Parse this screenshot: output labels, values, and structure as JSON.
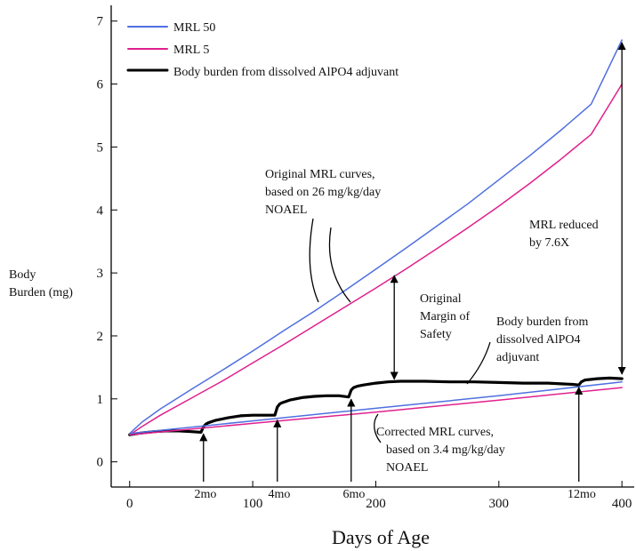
{
  "chart_data": {
    "type": "line",
    "xlabel": "Days of Age",
    "ylabel": [
      "Body",
      "Burden (mg)"
    ],
    "xlim": [
      -15,
      410
    ],
    "ylim": [
      -0.4,
      7.25
    ],
    "x_ticks": [
      0,
      100,
      200,
      300,
      400
    ],
    "y_ticks": [
      0,
      1,
      2,
      3,
      4,
      5,
      6,
      7
    ],
    "grid": false,
    "legend_position": "top-left",
    "series": [
      {
        "name": "MRL 50",
        "color": "#4f6fe0",
        "x": [
          0,
          10,
          25,
          50,
          75,
          100,
          125,
          150,
          175,
          200,
          225,
          250,
          275,
          300,
          325,
          350,
          375,
          400
        ],
        "y": [
          0.45,
          0.63,
          0.84,
          1.15,
          1.45,
          1.76,
          2.08,
          2.39,
          2.72,
          3.06,
          3.4,
          3.75,
          4.1,
          4.48,
          4.86,
          5.26,
          5.68,
          6.7
        ]
      },
      {
        "name": "MRL 5",
        "color": "#e0208e",
        "x": [
          0,
          10,
          25,
          50,
          75,
          100,
          125,
          150,
          175,
          200,
          225,
          250,
          275,
          300,
          325,
          350,
          375,
          400
        ],
        "y": [
          0.43,
          0.56,
          0.74,
          1.01,
          1.28,
          1.57,
          1.86,
          2.16,
          2.46,
          2.76,
          3.07,
          3.39,
          3.72,
          4.06,
          4.42,
          4.8,
          5.2,
          6.0
        ]
      },
      {
        "name": "Body burden from dissolved AlPO4 adjuvant",
        "color": "#000000",
        "x": [
          0,
          10,
          20,
          30,
          40,
          50,
          58,
          60,
          62,
          64,
          70,
          80,
          90,
          100,
          110,
          118,
          120,
          122,
          124,
          130,
          140,
          150,
          160,
          170,
          178,
          180,
          182,
          185,
          190,
          200,
          210,
          220,
          240,
          260,
          280,
          300,
          320,
          340,
          360,
          365,
          367,
          370,
          380,
          390,
          400
        ],
        "y": [
          0.43,
          0.46,
          0.48,
          0.49,
          0.49,
          0.48,
          0.47,
          0.56,
          0.6,
          0.62,
          0.66,
          0.7,
          0.73,
          0.74,
          0.74,
          0.74,
          0.87,
          0.92,
          0.94,
          0.98,
          1.02,
          1.04,
          1.05,
          1.05,
          1.03,
          1.14,
          1.18,
          1.2,
          1.22,
          1.25,
          1.27,
          1.28,
          1.28,
          1.27,
          1.27,
          1.26,
          1.25,
          1.25,
          1.23,
          1.22,
          1.27,
          1.3,
          1.32,
          1.33,
          1.32
        ]
      },
      {
        "name": "Corrected MRL (blue)",
        "color": "#4f6fe0",
        "x": [
          0,
          100,
          200,
          300,
          400
        ],
        "y": [
          0.45,
          0.65,
          0.85,
          1.05,
          1.27
        ]
      },
      {
        "name": "Corrected MRL (pink)",
        "color": "#e0208e",
        "x": [
          0,
          100,
          200,
          300,
          400
        ],
        "y": [
          0.43,
          0.61,
          0.79,
          0.98,
          1.18
        ]
      }
    ],
    "legend": [
      {
        "label": "MRL 50",
        "color": "#4f6fe0",
        "width": 2
      },
      {
        "label": "MRL 5",
        "color": "#e0208e",
        "width": 2
      },
      {
        "label": "Body burden from dissolved AlPO4 adjuvant",
        "color": "#000000",
        "width": 3
      }
    ],
    "annotations": [
      {
        "lines": [
          "Original MRL curves,",
          "based on 26 mg/kg/day",
          "NOAEL"
        ]
      },
      {
        "lines": [
          "Original",
          "Margin of",
          "Safety"
        ]
      },
      {
        "lines": [
          "Body burden from",
          "dissolved AlPO4",
          "adjuvant"
        ]
      },
      {
        "lines": [
          "MRL reduced",
          "by 7.6X"
        ]
      },
      {
        "lines": [
          "Corrected MRL curves,",
          "based on 3.4 mg/kg/day",
          "NOAEL"
        ]
      }
    ],
    "vaccination_markers": [
      {
        "label": "2mo",
        "x": 60,
        "y": 0.5
      },
      {
        "label": "4mo",
        "x": 120,
        "y": 0.72
      },
      {
        "label": "6mo",
        "x": 180,
        "y": 1.05
      },
      {
        "label": "12mo",
        "x": 365,
        "y": 1.24
      }
    ],
    "margin_arrow": {
      "x": 215,
      "y_top": 3.0,
      "y_bottom": 1.27
    },
    "reduction_arrow": {
      "x": 400,
      "y_top": 6.7,
      "y_bottom": 1.35
    }
  }
}
